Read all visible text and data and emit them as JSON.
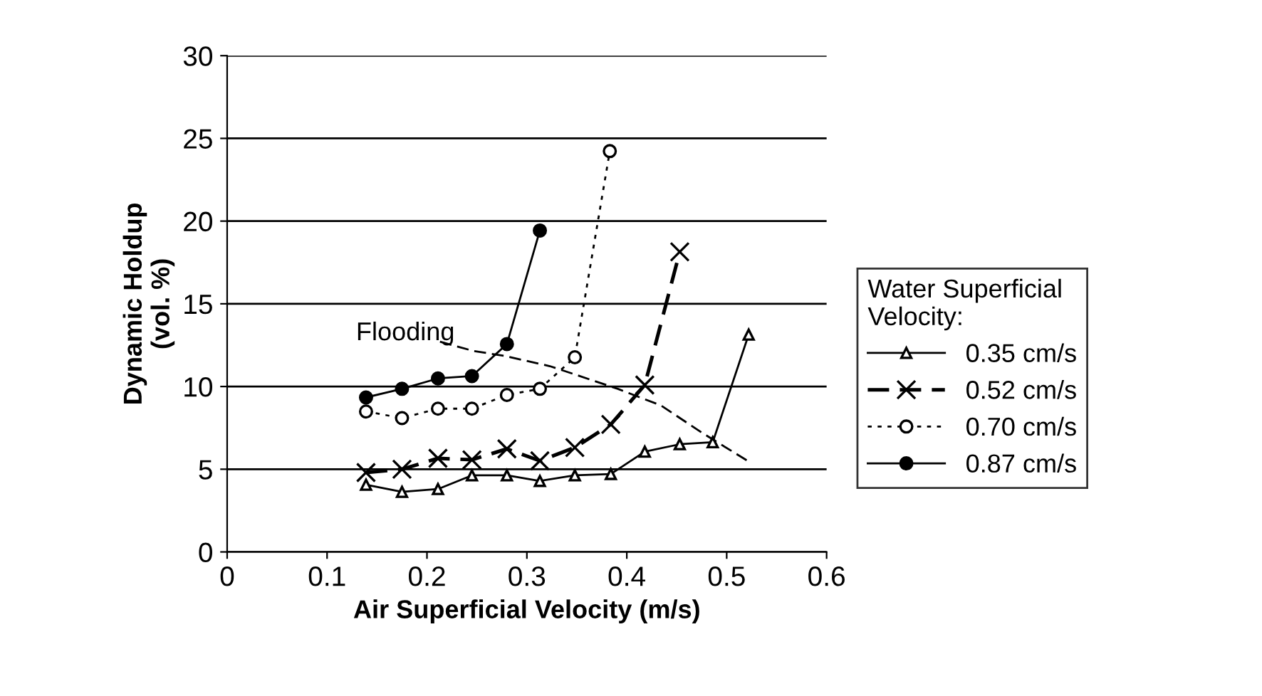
{
  "chart_data": {
    "type": "line",
    "xlabel": "Air Superficial Velocity (m/s)",
    "ylabel": "Dynamic Holdup\n(vol. %)",
    "legend_title": "Water Superficial\nVelocity:",
    "legend": "right",
    "grid": "y",
    "xlim": [
      0,
      0.6
    ],
    "xticks": [
      0,
      0.1,
      0.2,
      0.3,
      0.4,
      0.5,
      0.6
    ],
    "ylim": [
      0,
      30
    ],
    "yticks": [
      0,
      5,
      10,
      15,
      20,
      25,
      30
    ],
    "annotations": [
      "Flooding"
    ],
    "series": [
      {
        "name": "0.35 cm/s",
        "color": "#000000",
        "marker": "triangle",
        "line_style": "solid",
        "x": [
          0.139,
          0.175,
          0.211,
          0.245,
          0.28,
          0.313,
          0.348,
          0.384,
          0.418,
          0.453,
          0.486,
          0.522
        ],
        "values": [
          4.06,
          3.63,
          3.8,
          4.63,
          4.63,
          4.29,
          4.63,
          4.71,
          6.06,
          6.51,
          6.63,
          13.14
        ]
      },
      {
        "name": "0.52 cm/s",
        "color": "#000000",
        "marker": "cross",
        "line_style": "dashed",
        "x": [
          0.139,
          0.175,
          0.211,
          0.245,
          0.28,
          0.313,
          0.348,
          0.384,
          0.418,
          0.453
        ],
        "values": [
          4.8,
          5.0,
          5.66,
          5.57,
          6.23,
          5.51,
          6.31,
          7.71,
          10.09,
          18.14
        ]
      },
      {
        "name": "0.70 cm/s",
        "color": "#000000",
        "marker": "circle",
        "line_style": "dotted",
        "x": [
          0.139,
          0.175,
          0.211,
          0.245,
          0.28,
          0.313,
          0.348,
          0.383
        ],
        "values": [
          8.49,
          8.09,
          8.66,
          8.66,
          9.49,
          9.86,
          11.77,
          24.23
        ]
      },
      {
        "name": "0.87 cm/s",
        "color": "#000000",
        "marker": "circle",
        "line_style": "solid",
        "x": [
          0.139,
          0.175,
          0.211,
          0.245,
          0.28,
          0.313
        ],
        "values": [
          9.34,
          9.86,
          10.49,
          10.63,
          12.57,
          19.43
        ]
      },
      {
        "color": "#000000",
        "marker": "none",
        "line_style": "dashed",
        "x": [
          0.213,
          0.247,
          0.277,
          0.323,
          0.349,
          0.391,
          0.434,
          0.477,
          0.523
        ],
        "values": [
          12.71,
          12.14,
          11.86,
          11.23,
          10.71,
          9.86,
          8.86,
          7.14,
          5.43
        ]
      }
    ]
  }
}
